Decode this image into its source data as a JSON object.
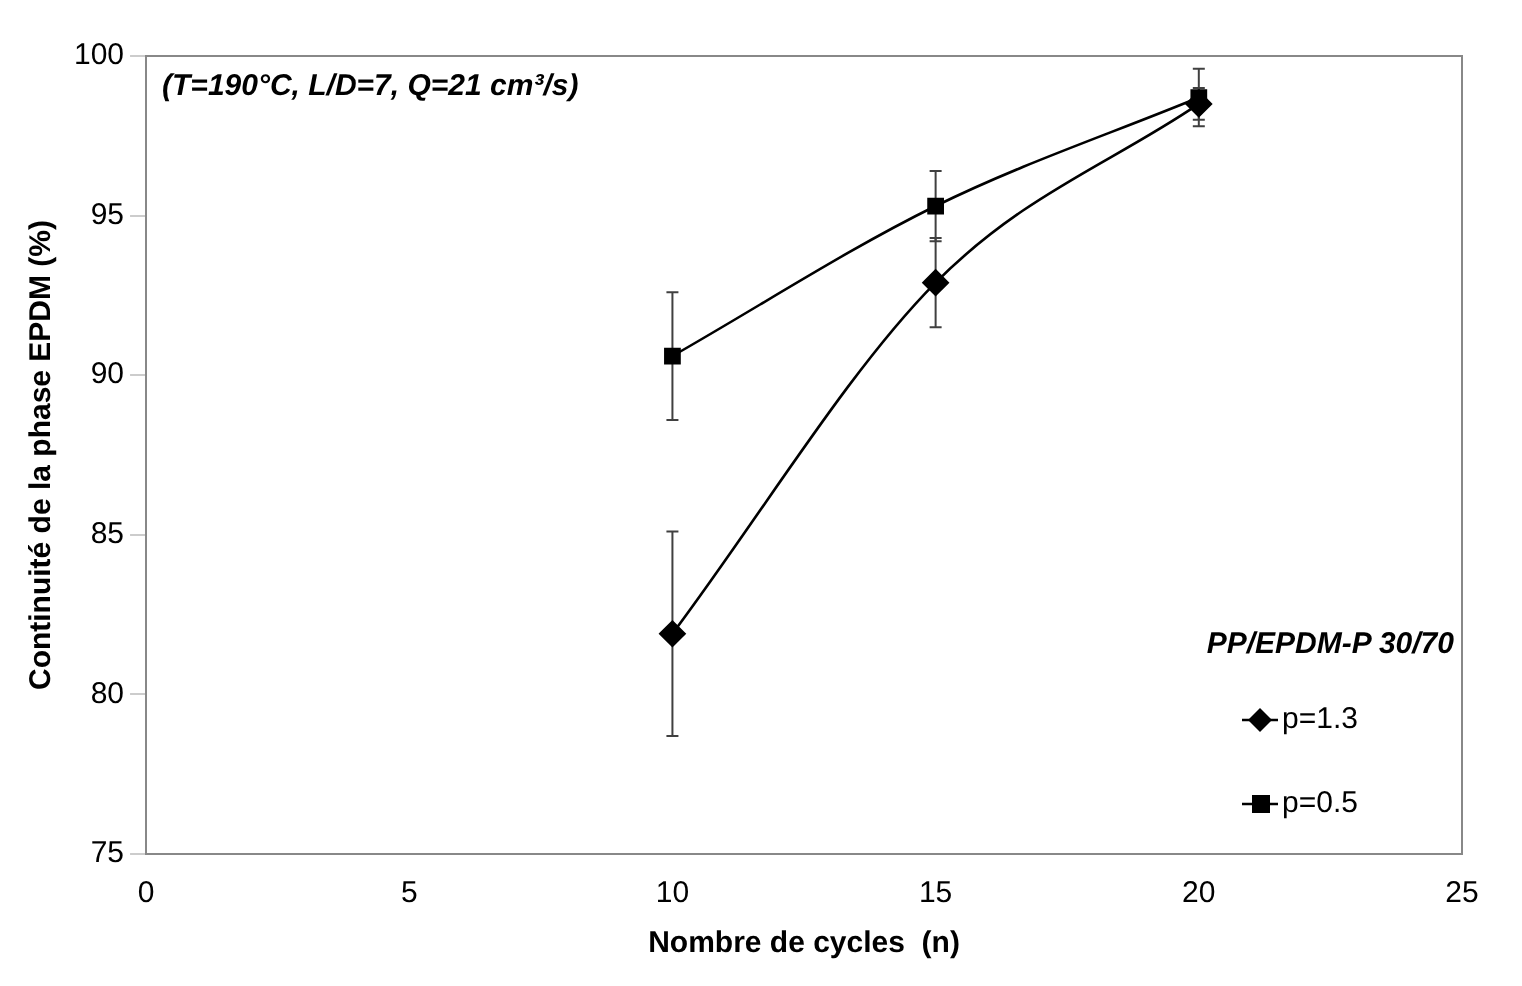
{
  "chart_data": {
    "type": "line",
    "xlabel": "Nombre de cycles  (n)",
    "ylabel": "Continuité de la phase EPDM (%)",
    "annotations": [
      "(T=190°C, L/D=7, Q=21 cm³/s)"
    ],
    "legend_title": "PP/EPDM-P 30/70",
    "legend": "bottom right",
    "grid": false,
    "x": [
      10,
      15,
      20
    ],
    "xlim": [
      0,
      25
    ],
    "xticks": [
      0,
      5,
      10,
      15,
      20,
      25
    ],
    "ylim": [
      75,
      100
    ],
    "yticks": [
      75,
      80,
      85,
      90,
      95,
      100
    ],
    "series": [
      {
        "name": "p=1.3",
        "color": "#000000",
        "marker": "diamond",
        "values": [
          81.9,
          92.9,
          98.5
        ],
        "errors": [
          3.2,
          1.4,
          0.5
        ]
      },
      {
        "name": "p=0.5",
        "color": "#000000",
        "marker": "square",
        "values": [
          90.6,
          95.3,
          98.7
        ],
        "errors": [
          2.0,
          1.1,
          0.9
        ]
      }
    ]
  }
}
